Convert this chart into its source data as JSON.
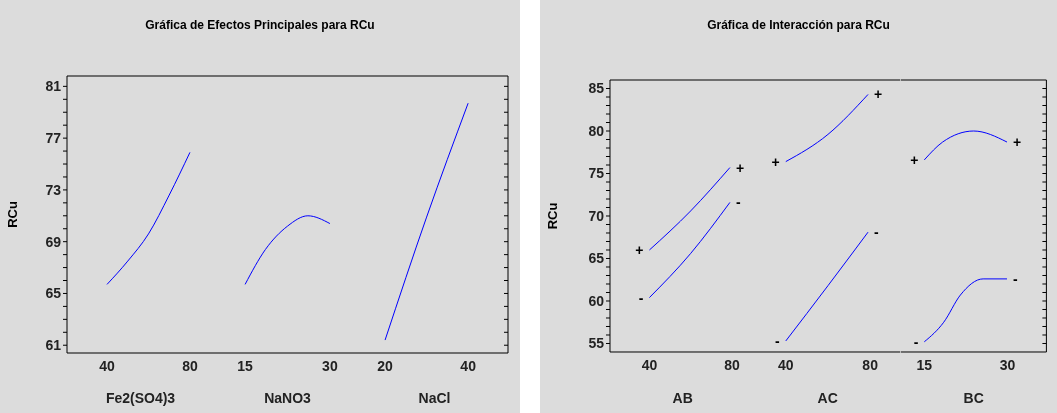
{
  "chart_data": [
    {
      "type": "line",
      "title": "Gráfica de Efectos Principales para RCu",
      "ylabel": "RCu",
      "xlabel": "Fe2(SO4)3",
      "xlim": [
        20.7,
        91.6
      ],
      "xticks": [
        40,
        80
      ],
      "ylim": [
        60.4,
        81.8
      ],
      "yticks": [
        61,
        {
          "value": 62,
          "label": null
        },
        {
          "value": 63,
          "label": null
        },
        {
          "value": 64,
          "label": null
        },
        65,
        {
          "value": 66,
          "label": null
        },
        {
          "value": 67,
          "label": null
        },
        {
          "value": 68,
          "label": null
        },
        69,
        {
          "value": 70,
          "label": null
        },
        {
          "value": 71,
          "label": null
        },
        {
          "value": 72,
          "label": null
        },
        73,
        {
          "value": 74,
          "label": null
        },
        {
          "value": 75,
          "label": null
        },
        {
          "value": 76,
          "label": null
        },
        77,
        {
          "value": 78,
          "label": null
        },
        {
          "value": 79,
          "label": null
        },
        {
          "value": 80,
          "label": null
        },
        81
      ],
      "series": [
        {
          "color": "#0000ff",
          "x": [
            40,
            50,
            60,
            70,
            80
          ],
          "values": [
            65.7,
            67.5,
            69.6,
            72.6,
            75.9
          ]
        }
      ]
    },
    {
      "type": "line",
      "xlabel": "NaNO3",
      "xlim": [
        9.5,
        35.5
      ],
      "xticks": [
        15,
        30
      ],
      "ylim": [
        60.4,
        81.8
      ],
      "tick_labels": "x",
      "series": [
        {
          "color": "#0000ff",
          "x": [
            15,
            18.6,
            22.5,
            26.1,
            30
          ],
          "values": [
            65.7,
            68.4,
            70.2,
            71.0,
            70.4
          ]
        }
      ]
    },
    {
      "type": "line",
      "xlabel": "NaCl",
      "xlim": [
        14.2,
        49.6
      ],
      "xticks": [
        20,
        40
      ],
      "ylim": [
        60.4,
        81.8
      ],
      "yticks": [
        {
          "value": 61,
          "label": null
        },
        {
          "value": 62,
          "label": null
        },
        {
          "value": 63,
          "label": null
        },
        {
          "value": 64,
          "label": null
        },
        {
          "value": 65,
          "label": null
        },
        {
          "value": 66,
          "label": null
        },
        {
          "value": 67,
          "label": null
        },
        {
          "value": 68,
          "label": null
        },
        {
          "value": 69,
          "label": null
        },
        {
          "value": 70,
          "label": null
        },
        {
          "value": 71,
          "label": null
        },
        {
          "value": 72,
          "label": null
        },
        {
          "value": 73,
          "label": null
        },
        {
          "value": 74,
          "label": null
        },
        {
          "value": 75,
          "label": null
        },
        {
          "value": 76,
          "label": null
        },
        {
          "value": 77,
          "label": null
        },
        {
          "value": 78,
          "label": null
        },
        {
          "value": 79,
          "label": null
        },
        {
          "value": 80,
          "label": null
        },
        {
          "value": 81,
          "label": null
        }
      ],
      "tick_labels": "x",
      "series": [
        {
          "color": "#0000ff",
          "x": [
            20,
            30,
            40
          ],
          "values": [
            61.4,
            70.9,
            79.7
          ]
        }
      ]
    },
    {
      "type": "line",
      "title": "Gráfica de Interacción para RCu",
      "ylabel": "RCu",
      "xlabel": "AB",
      "xlim": [
        20.9,
        91.3
      ],
      "xticks": [
        40,
        80
      ],
      "ylim": [
        54,
        86
      ],
      "yticks": [
        55,
        {
          "value": 56,
          "label": null
        },
        {
          "value": 57,
          "label": null
        },
        {
          "value": 58,
          "label": null
        },
        {
          "value": 59,
          "label": null
        },
        60,
        {
          "value": 61,
          "label": null
        },
        {
          "value": 62,
          "label": null
        },
        {
          "value": 63,
          "label": null
        },
        {
          "value": 64,
          "label": null
        },
        65,
        {
          "value": 66,
          "label": null
        },
        {
          "value": 67,
          "label": null
        },
        {
          "value": 68,
          "label": null
        },
        {
          "value": 69,
          "label": null
        },
        70,
        {
          "value": 71,
          "label": null
        },
        {
          "value": 72,
          "label": null
        },
        {
          "value": 73,
          "label": null
        },
        {
          "value": 74,
          "label": null
        },
        75,
        {
          "value": 76,
          "label": null
        },
        {
          "value": 77,
          "label": null
        },
        {
          "value": 78,
          "label": null
        },
        {
          "value": 79,
          "label": null
        },
        80,
        {
          "value": 81,
          "label": null
        },
        {
          "value": 82,
          "label": null
        },
        {
          "value": 83,
          "label": null
        },
        {
          "value": 84,
          "label": null
        },
        85
      ],
      "annotations": [
        {
          "text": "+",
          "x": 40,
          "y": 66.0
        },
        {
          "text": "+",
          "x": 79,
          "y": 75.7
        },
        {
          "text": "-",
          "x": 40,
          "y": 60.4
        },
        {
          "text": "-",
          "x": 79,
          "y": 71.6
        }
      ],
      "series": [
        {
          "color": "#0000ff",
          "x": [
            40,
            60,
            79
          ],
          "values": [
            66.0,
            70.6,
            75.7
          ]
        },
        {
          "color": "#0000ff",
          "x": [
            40,
            60,
            79
          ],
          "values": [
            60.4,
            65.6,
            71.6
          ]
        }
      ]
    },
    {
      "type": "line",
      "xlabel": "AC",
      "xlim": [
        25.4,
        94.3
      ],
      "xticks": [
        40,
        80
      ],
      "ylim": [
        54,
        86
      ],
      "tick_labels": "x",
      "annotations": [
        {
          "text": "+",
          "x": 40,
          "y": 76.4
        },
        {
          "text": "+",
          "x": 79,
          "y": 84.3
        },
        {
          "text": "-",
          "x": 40,
          "y": 55.3
        },
        {
          "text": "-",
          "x": 79,
          "y": 68.1
        }
      ],
      "series": [
        {
          "color": "#0000ff",
          "x": [
            40,
            60,
            79
          ],
          "values": [
            76.4,
            79.6,
            84.3
          ]
        },
        {
          "color": "#0000ff",
          "x": [
            40,
            60,
            79
          ],
          "values": [
            55.3,
            61.8,
            68.1
          ]
        }
      ]
    },
    {
      "type": "line",
      "xlabel": "BC",
      "xlim": [
        10.8,
        37
      ],
      "xticks": [
        15,
        30
      ],
      "ylim": [
        54,
        86
      ],
      "yticks": [
        {
          "value": 55,
          "label": null
        },
        {
          "value": 56,
          "label": null
        },
        {
          "value": 57,
          "label": null
        },
        {
          "value": 58,
          "label": null
        },
        {
          "value": 59,
          "label": null
        },
        {
          "value": 60,
          "label": null
        },
        {
          "value": 61,
          "label": null
        },
        {
          "value": 62,
          "label": null
        },
        {
          "value": 63,
          "label": null
        },
        {
          "value": 64,
          "label": null
        },
        {
          "value": 65,
          "label": null
        },
        {
          "value": 66,
          "label": null
        },
        {
          "value": 67,
          "label": null
        },
        {
          "value": 68,
          "label": null
        },
        {
          "value": 69,
          "label": null
        },
        {
          "value": 70,
          "label": null
        },
        {
          "value": 71,
          "label": null
        },
        {
          "value": 72,
          "label": null
        },
        {
          "value": 73,
          "label": null
        },
        {
          "value": 74,
          "label": null
        },
        {
          "value": 75,
          "label": null
        },
        {
          "value": 76,
          "label": null
        },
        {
          "value": 77,
          "label": null
        },
        {
          "value": 78,
          "label": null
        },
        {
          "value": 79,
          "label": null
        },
        {
          "value": 80,
          "label": null
        },
        {
          "value": 81,
          "label": null
        },
        {
          "value": 82,
          "label": null
        },
        {
          "value": 83,
          "label": null
        },
        {
          "value": 84,
          "label": null
        },
        {
          "value": 85,
          "label": null
        }
      ],
      "tick_labels": "x",
      "annotations": [
        {
          "text": "+",
          "x": 15,
          "y": 76.6
        },
        {
          "text": "+",
          "x": 29.9,
          "y": 78.7
        },
        {
          "text": "-",
          "x": 15,
          "y": 55.2
        },
        {
          "text": "-",
          "x": 29.9,
          "y": 62.6
        }
      ],
      "series": [
        {
          "color": "#0000ff",
          "x": [
            15,
            18.3,
            23.9,
            29.9
          ],
          "values": [
            76.6,
            78.7,
            80.0,
            78.7
          ]
        },
        {
          "color": "#0000ff",
          "x": [
            15,
            18.5,
            21.5,
            25.6,
            29.9
          ],
          "values": [
            55.2,
            57.5,
            60.7,
            62.6,
            62.6
          ]
        }
      ]
    }
  ]
}
